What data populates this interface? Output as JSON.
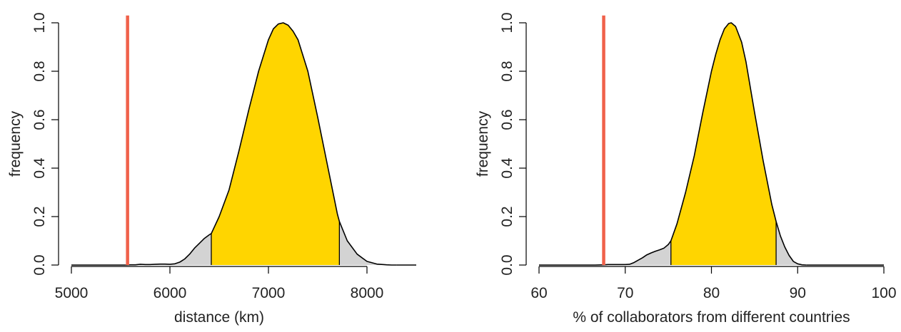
{
  "chart_data": [
    {
      "type": "area",
      "xlabel": "distance (km)",
      "ylabel": "frequency",
      "xlim": [
        5000,
        8500
      ],
      "ylim": [
        0,
        1.0
      ],
      "x_ticks": [
        5000,
        6000,
        7000,
        8000
      ],
      "y_ticks": [
        0.0,
        0.2,
        0.4,
        0.6,
        0.8,
        1.0
      ],
      "y_tick_labels": [
        "0.0",
        "0.2",
        "0.4",
        "0.6",
        "0.8",
        "1.0"
      ],
      "grid": false,
      "observed_value": 5570,
      "interval": [
        6420,
        7720
      ],
      "colors": {
        "interval_fill": "#FFD500",
        "tail_fill": "#D3D3D3",
        "observed_line": "#F0614A",
        "curve": "#000000"
      },
      "curve": {
        "x": [
          5550,
          5600,
          5650,
          5700,
          5750,
          5800,
          5850,
          5900,
          5950,
          6000,
          6050,
          6100,
          6150,
          6200,
          6250,
          6300,
          6350,
          6400,
          6420,
          6500,
          6600,
          6700,
          6800,
          6900,
          7000,
          7050,
          7100,
          7150,
          7200,
          7250,
          7300,
          7400,
          7500,
          7600,
          7700,
          7720,
          7800,
          7900,
          8000,
          8100,
          8200,
          8250,
          8300
        ],
        "y": [
          0.0,
          0.001,
          0.001,
          0.003,
          0.002,
          0.002,
          0.003,
          0.004,
          0.004,
          0.003,
          0.005,
          0.012,
          0.025,
          0.045,
          0.07,
          0.09,
          0.11,
          0.125,
          0.13,
          0.2,
          0.31,
          0.47,
          0.64,
          0.8,
          0.93,
          0.975,
          0.995,
          1.0,
          0.99,
          0.965,
          0.93,
          0.8,
          0.61,
          0.41,
          0.21,
          0.18,
          0.1,
          0.045,
          0.015,
          0.004,
          0.001,
          0.0,
          0.0
        ]
      }
    },
    {
      "type": "area",
      "xlabel": "% of collaborators from different countries",
      "ylabel": "frequency",
      "xlim": [
        60,
        100
      ],
      "ylim": [
        0,
        1.0
      ],
      "x_ticks": [
        60,
        70,
        80,
        90,
        100
      ],
      "y_ticks": [
        0.0,
        0.2,
        0.4,
        0.6,
        0.8,
        1.0
      ],
      "y_tick_labels": [
        "0.0",
        "0.2",
        "0.4",
        "0.6",
        "0.8",
        "1.0"
      ],
      "grid": false,
      "observed_value": 67.5,
      "interval": [
        75.3,
        87.5
      ],
      "colors": {
        "interval_fill": "#FFD500",
        "tail_fill": "#D3D3D3",
        "observed_line": "#F0614A",
        "curve": "#000000"
      },
      "curve": {
        "x": [
          66.5,
          67.5,
          68,
          69,
          70,
          70.5,
          71,
          71.5,
          72,
          72.5,
          73,
          73.5,
          74,
          74.5,
          75,
          75.3,
          76,
          77,
          78,
          79,
          80,
          80.5,
          81,
          81.5,
          82,
          82.3,
          82.8,
          83.5,
          84,
          85,
          86,
          87,
          87.5,
          88,
          88.5,
          89,
          89.5,
          90,
          90.5,
          91
        ],
        "y": [
          0.0,
          0.001,
          0.002,
          0.002,
          0.002,
          0.003,
          0.01,
          0.02,
          0.03,
          0.042,
          0.05,
          0.057,
          0.063,
          0.07,
          0.085,
          0.1,
          0.17,
          0.3,
          0.45,
          0.63,
          0.8,
          0.87,
          0.93,
          0.975,
          0.997,
          1.0,
          0.985,
          0.92,
          0.84,
          0.63,
          0.43,
          0.25,
          0.18,
          0.12,
          0.075,
          0.04,
          0.015,
          0.005,
          0.001,
          0.0
        ]
      }
    }
  ]
}
